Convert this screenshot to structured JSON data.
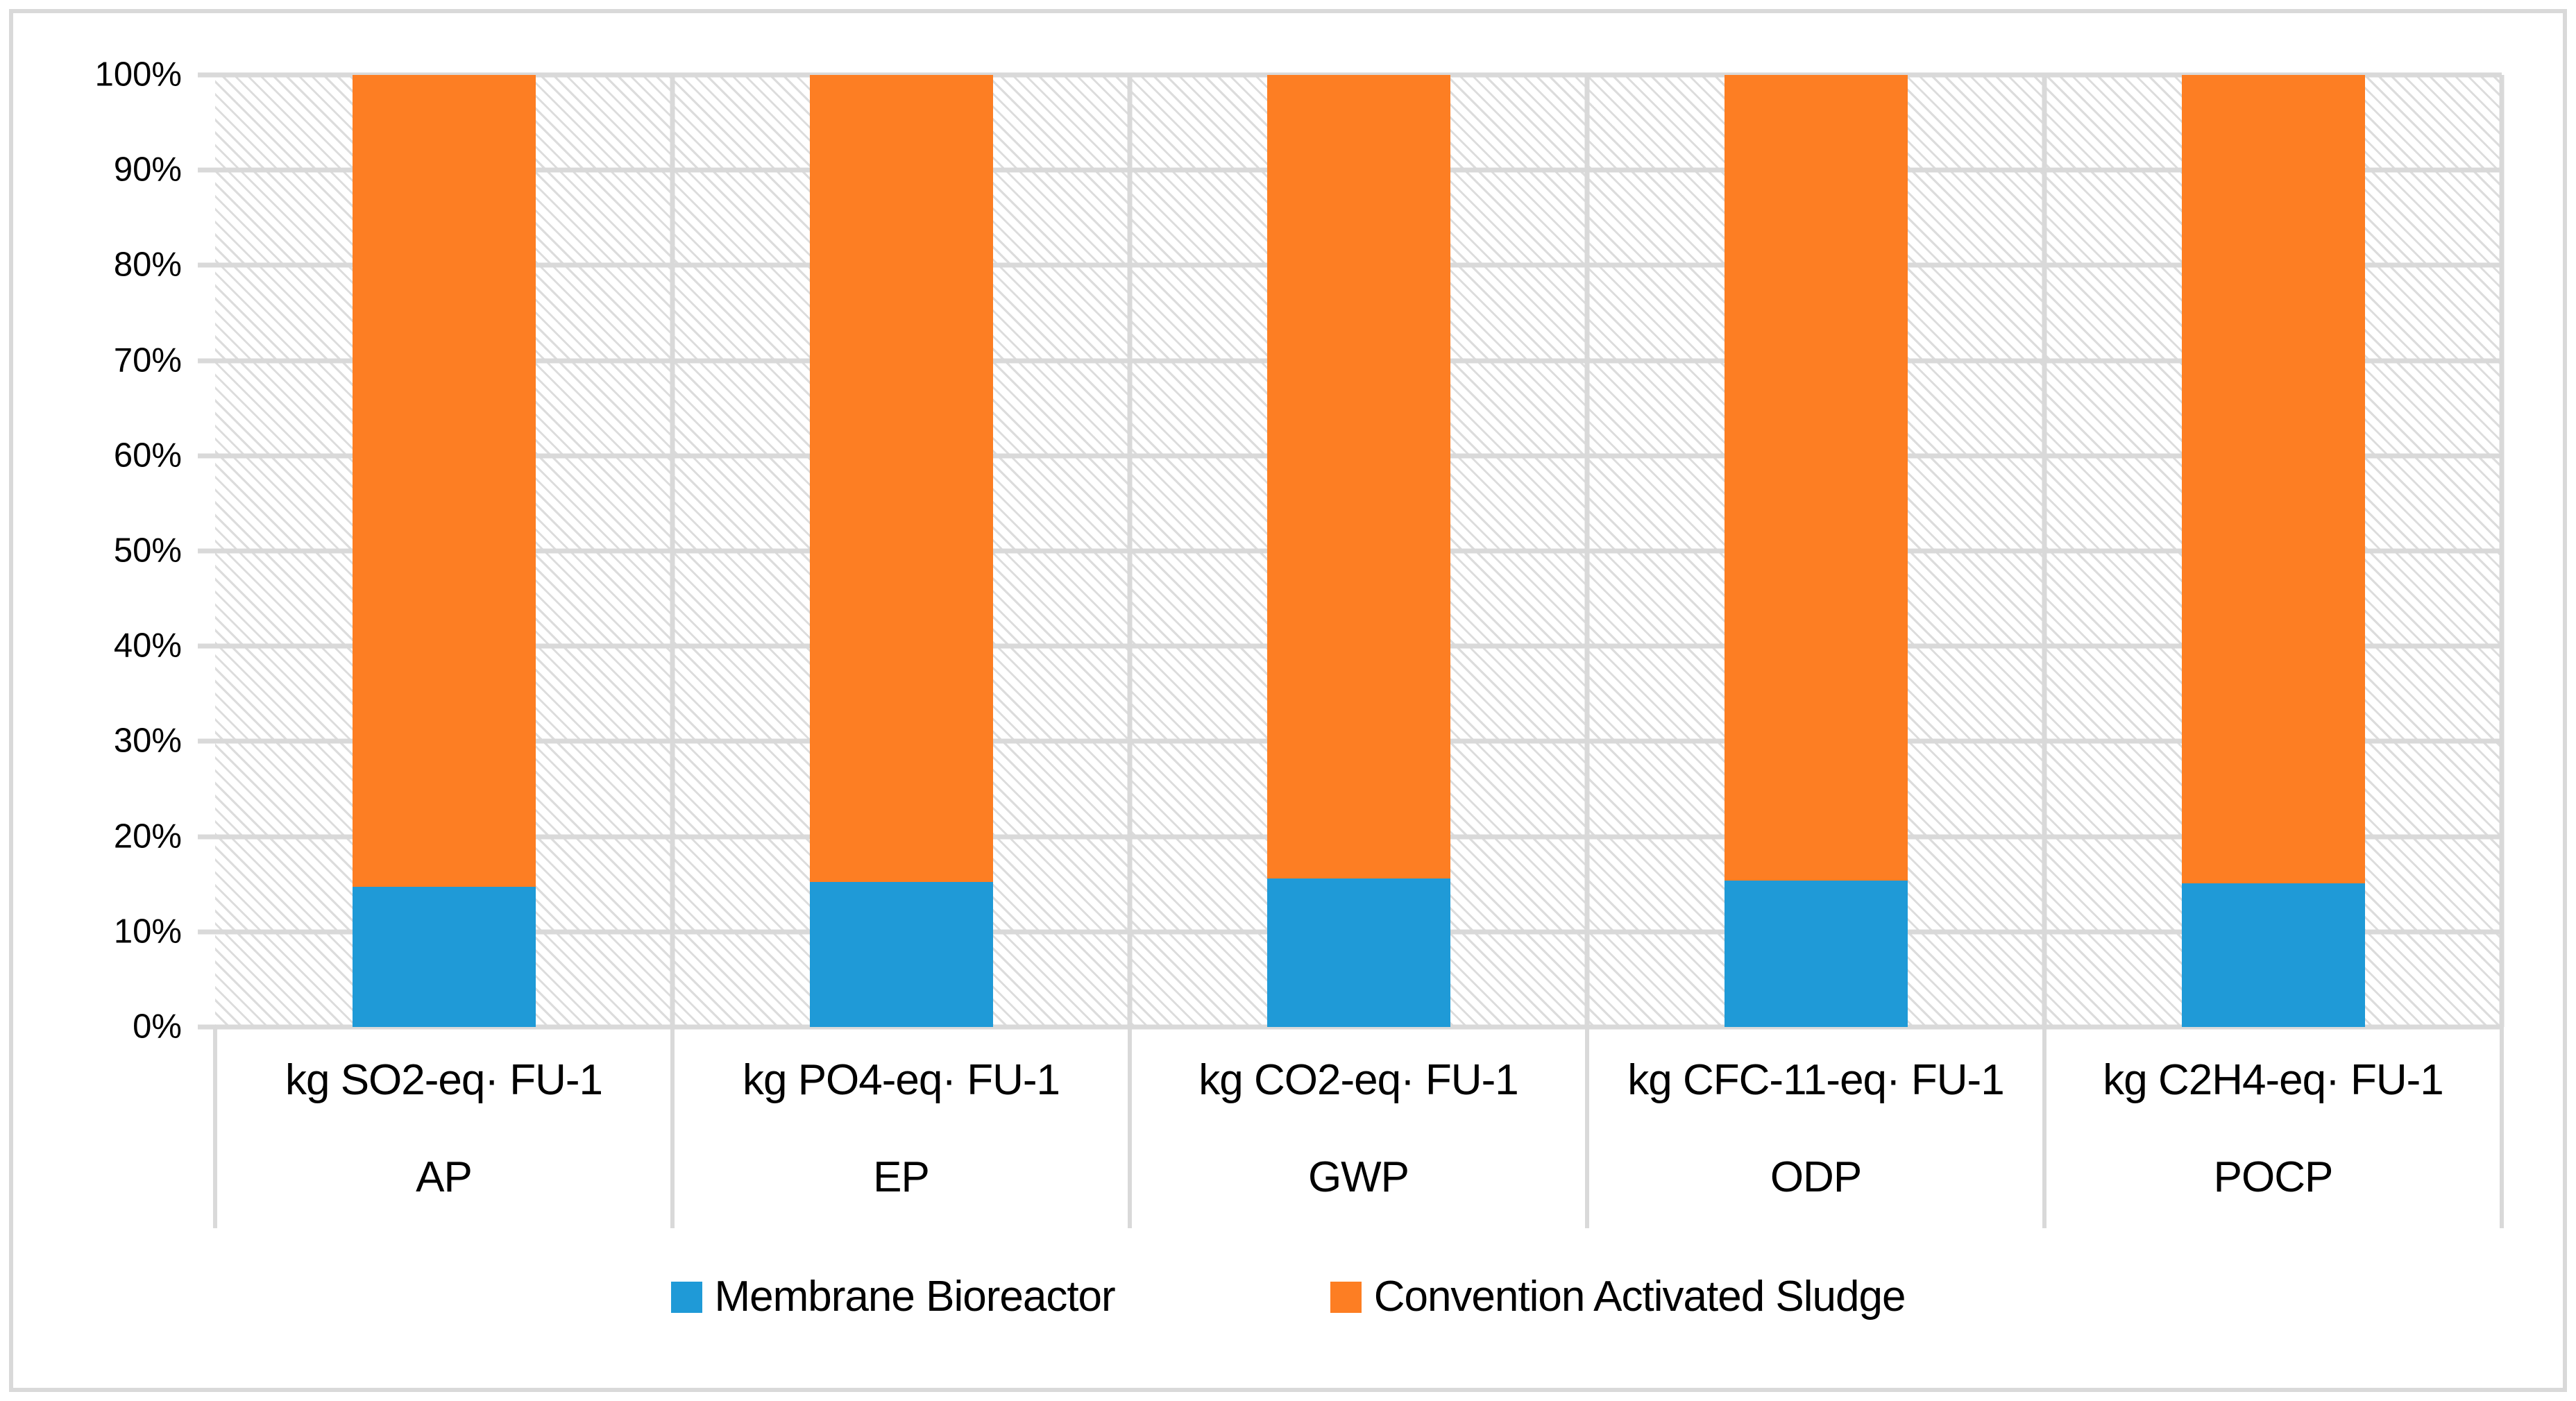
{
  "chart_data": {
    "type": "bar",
    "stacked": true,
    "percent_stacked": true,
    "title": "",
    "xlabel": "",
    "ylabel": "",
    "grid": true,
    "legend_position": "bottom",
    "plot_background": "diagonal-hatch",
    "categories": [
      "AP",
      "EP",
      "GWP",
      "ODP",
      "POCP"
    ],
    "category_units": [
      "kg SO2-eq· FU-1",
      "kg PO4-eq· FU-1",
      "kg CO2-eq· FU-1",
      "kg CFC-11-eq· FU-1",
      "kg C2H4-eq· FU-1"
    ],
    "series": [
      {
        "name": "Membrane Bioreactor",
        "color": "#1F9AD7",
        "values": [
          14.7,
          15.2,
          15.6,
          15.4,
          15.1
        ]
      },
      {
        "name": "Convention Activated Sludge",
        "color": "#FD7E23",
        "values": [
          85.3,
          84.8,
          84.4,
          84.6,
          84.9
        ]
      }
    ],
    "y_axis": {
      "min": 0,
      "max": 100,
      "step": 10,
      "tick_labels": [
        "100%",
        "90%",
        "80%",
        "70%",
        "60%",
        "50%",
        "40%",
        "30%",
        "20%",
        "10%",
        "0%"
      ]
    }
  },
  "colors": {
    "series_blue": "#1F9AD7",
    "series_orange": "#FD7E23",
    "gridline": "#D9D9D9",
    "hatch": "#DCDCDC",
    "frame_border": "#D9D9D9",
    "text": "#000000",
    "background": "#FFFFFF"
  }
}
